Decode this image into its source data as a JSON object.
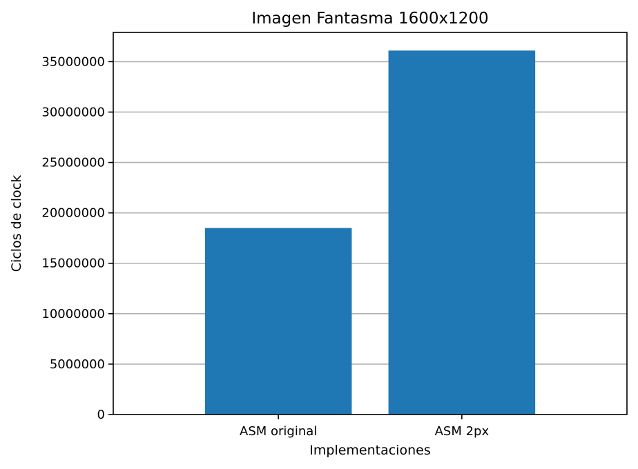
{
  "chart_data": {
    "type": "bar",
    "title": "Imagen Fantasma 1600x1200",
    "xlabel": "Implementaciones",
    "ylabel": "Ciclos de clock",
    "categories": [
      "ASM original",
      "ASM 2px"
    ],
    "values": [
      18500000,
      36100000
    ],
    "ylim": [
      0,
      37900000
    ],
    "yticks": [
      0,
      5000000,
      10000000,
      15000000,
      20000000,
      25000000,
      30000000,
      35000000
    ],
    "ytick_labels": [
      "0",
      "5000000",
      "10000000",
      "15000000",
      "20000000",
      "25000000",
      "30000000",
      "35000000"
    ],
    "grid": "y",
    "bar_color": "#1f77b4"
  }
}
